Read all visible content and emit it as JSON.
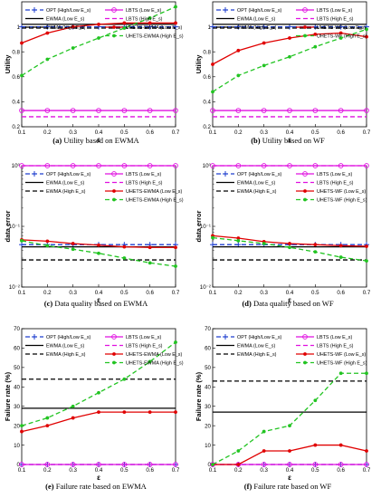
{
  "chart_data": [
    {
      "id": "a",
      "type": "line",
      "caption_tag": "(a)",
      "caption_text": "Utility based on EWMA",
      "xlabel": "ε",
      "ylabel": "Utility",
      "x": [
        0.1,
        0.2,
        0.3,
        0.4,
        0.5,
        0.6,
        0.7
      ],
      "xlim": [
        0.1,
        0.7
      ],
      "ylim": [
        0.2,
        1.2
      ],
      "ticks_x": [
        "0.1",
        "0.2",
        "0.3",
        "0.4",
        "0.5",
        "0.6",
        "0.7"
      ],
      "yscale": "linear",
      "yticks": [
        0.2,
        0.4,
        0.6,
        0.8,
        1.0
      ],
      "ytick_labels": [
        "0.2",
        "0.4",
        "0.6",
        "0.8",
        "1"
      ],
      "legend_position": "top",
      "series": [
        {
          "name": "OPT (High/Low E_s)",
          "color": "#1f3fcf",
          "dash": "dashed",
          "marker": "plus",
          "values": [
            1.0,
            1.0,
            1.0,
            1.0,
            1.0,
            1.0,
            1.0
          ]
        },
        {
          "name": "LBTS (Low E_s)",
          "color": "#e010e0",
          "dash": "solid",
          "marker": "circle",
          "values": [
            0.33,
            0.33,
            0.33,
            0.33,
            0.33,
            0.33,
            0.33
          ]
        },
        {
          "name": "EWMA (Low E_s)",
          "color": "#000000",
          "dash": "solid",
          "marker": "none",
          "values": [
            1.02,
            1.02,
            1.02,
            1.02,
            1.02,
            1.02,
            1.02
          ]
        },
        {
          "name": "LBTS (High E_s)",
          "color": "#e010e0",
          "dash": "dashed",
          "marker": "none",
          "values": [
            0.28,
            0.28,
            0.28,
            0.28,
            0.28,
            0.28,
            0.28
          ]
        },
        {
          "name": "EWMA (High E_s)",
          "color": "#000000",
          "dash": "dashed",
          "marker": "none",
          "values": [
            0.99,
            0.99,
            0.99,
            0.99,
            0.99,
            0.99,
            0.99
          ]
        },
        {
          "name": "UHETS-EWMA (Low E_s)",
          "color": "#e00000",
          "dash": "solid",
          "marker": "dot",
          "values": [
            0.87,
            0.95,
            1.0,
            1.02,
            1.03,
            1.03,
            1.03
          ]
        },
        {
          "name": "UHETS-EWMA (High E_s)",
          "color": "#22c422",
          "dash": "dashed",
          "marker": "dot",
          "values": [
            0.61,
            0.74,
            0.83,
            0.91,
            0.99,
            1.07,
            1.16
          ]
        }
      ]
    },
    {
      "id": "b",
      "type": "line",
      "caption_tag": "(b)",
      "caption_text": "Utility based on WF",
      "xlabel": "ε",
      "ylabel": "Utility",
      "x": [
        0.1,
        0.2,
        0.3,
        0.4,
        0.5,
        0.6,
        0.7
      ],
      "xlim": [
        0.1,
        0.7
      ],
      "ylim": [
        0.2,
        1.2
      ],
      "ticks_x": [
        "0.1",
        "0.2",
        "0.3",
        "0.4",
        "0.5",
        "0.6",
        "0.7"
      ],
      "yscale": "linear",
      "yticks": [
        0.2,
        0.4,
        0.6,
        0.8,
        1.0
      ],
      "ytick_labels": [
        "0.2",
        "0.4",
        "0.6",
        "0.8",
        "1"
      ],
      "legend_position": "top",
      "series": [
        {
          "name": "OPT (High/Low E_s)",
          "color": "#1f3fcf",
          "dash": "dashed",
          "marker": "plus",
          "values": [
            1.0,
            1.0,
            1.0,
            1.0,
            1.0,
            1.0,
            1.0
          ]
        },
        {
          "name": "LBTS (Low E_s)",
          "color": "#e010e0",
          "dash": "solid",
          "marker": "circle",
          "values": [
            0.33,
            0.33,
            0.33,
            0.33,
            0.33,
            0.33,
            0.33
          ]
        },
        {
          "name": "EWMA (Low E_s)",
          "color": "#000000",
          "dash": "solid",
          "marker": "none",
          "values": [
            1.02,
            1.02,
            1.02,
            1.02,
            1.02,
            1.02,
            1.02
          ]
        },
        {
          "name": "LBTS (High E_s)",
          "color": "#e010e0",
          "dash": "dashed",
          "marker": "none",
          "values": [
            0.28,
            0.28,
            0.28,
            0.28,
            0.28,
            0.28,
            0.28
          ]
        },
        {
          "name": "EWMA (High E_s)",
          "color": "#000000",
          "dash": "dashed",
          "marker": "none",
          "values": [
            0.99,
            0.99,
            0.99,
            0.99,
            0.99,
            0.99,
            0.99
          ]
        },
        {
          "name": "UHETS-WF (Low E_s)",
          "color": "#e00000",
          "dash": "solid",
          "marker": "dot",
          "values": [
            0.7,
            0.81,
            0.87,
            0.91,
            0.94,
            0.95,
            0.92
          ]
        },
        {
          "name": "UHETS-WF (High E_s)",
          "color": "#22c422",
          "dash": "dashed",
          "marker": "dot",
          "values": [
            0.48,
            0.61,
            0.69,
            0.76,
            0.84,
            0.91,
            0.98
          ]
        }
      ]
    },
    {
      "id": "c",
      "type": "line",
      "caption_tag": "(c)",
      "caption_text": "Data quality based on EWMA",
      "xlabel": "ε",
      "ylabel": "data error",
      "x": [
        0.1,
        0.2,
        0.3,
        0.4,
        0.5,
        0.6,
        0.7
      ],
      "xlim": [
        0.1,
        0.7
      ],
      "ylim": [
        0.01,
        1
      ],
      "ticks_x": [
        "0.1",
        "0.2",
        "0.3",
        "0.4",
        "0.5",
        "0.6",
        "0.7"
      ],
      "yscale": "log",
      "yticks": [
        0.01,
        0.1,
        1
      ],
      "ytick_labels": [
        "10⁻²",
        "10⁻¹",
        "10⁰"
      ],
      "legend_position": "top",
      "series": [
        {
          "name": "OPT (High/Low E_s)",
          "color": "#1f3fcf",
          "dash": "dashed",
          "marker": "plus",
          "values": [
            0.05,
            0.05,
            0.05,
            0.05,
            0.05,
            0.05,
            0.05
          ]
        },
        {
          "name": "LBTS (Low E_s)",
          "color": "#e010e0",
          "dash": "solid",
          "marker": "circle",
          "values": [
            1,
            1,
            1,
            1,
            1,
            1,
            1
          ]
        },
        {
          "name": "EWMA (Low E_s)",
          "color": "#000000",
          "dash": "solid",
          "marker": "none",
          "values": [
            0.046,
            0.046,
            0.046,
            0.046,
            0.046,
            0.046,
            0.046
          ]
        },
        {
          "name": "LBTS (High E_s)",
          "color": "#e010e0",
          "dash": "dashed",
          "marker": "none",
          "values": [
            1,
            1,
            1,
            1,
            1,
            1,
            1
          ]
        },
        {
          "name": "EWMA (High E_s)",
          "color": "#000000",
          "dash": "dashed",
          "marker": "none",
          "values": [
            0.028,
            0.028,
            0.028,
            0.028,
            0.028,
            0.028,
            0.028
          ]
        },
        {
          "name": "UHETS-EWMA (Low E_s)",
          "color": "#e00000",
          "dash": "solid",
          "marker": "dot",
          "values": [
            0.06,
            0.057,
            0.052,
            0.049,
            0.046,
            0.045,
            0.045
          ]
        },
        {
          "name": "UHETS-EWMA (High E_s)",
          "color": "#22c422",
          "dash": "dashed",
          "marker": "dot",
          "values": [
            0.058,
            0.048,
            0.042,
            0.036,
            0.03,
            0.025,
            0.022
          ]
        }
      ]
    },
    {
      "id": "d",
      "type": "line",
      "caption_tag": "(d)",
      "caption_text": "Data quality based on WF",
      "xlabel": "ε",
      "ylabel": "data error",
      "x": [
        0.1,
        0.2,
        0.3,
        0.4,
        0.5,
        0.6,
        0.7
      ],
      "xlim": [
        0.1,
        0.7
      ],
      "ylim": [
        0.01,
        1
      ],
      "ticks_x": [
        "0.1",
        "0.2",
        "0.3",
        "0.4",
        "0.5",
        "0.6",
        "0.7"
      ],
      "yscale": "log",
      "yticks": [
        0.01,
        0.1,
        1
      ],
      "ytick_labels": [
        "10⁻²",
        "10⁻¹",
        "10⁰"
      ],
      "legend_position": "top",
      "series": [
        {
          "name": "OPT (High/Low E_s)",
          "color": "#1f3fcf",
          "dash": "dashed",
          "marker": "plus",
          "values": [
            0.05,
            0.05,
            0.05,
            0.05,
            0.05,
            0.05,
            0.05
          ]
        },
        {
          "name": "LBTS (Low E_s)",
          "color": "#e010e0",
          "dash": "solid",
          "marker": "circle",
          "values": [
            1,
            1,
            1,
            1,
            1,
            1,
            1
          ]
        },
        {
          "name": "EWMA (Low E_s)",
          "color": "#000000",
          "dash": "solid",
          "marker": "none",
          "values": [
            0.046,
            0.046,
            0.046,
            0.046,
            0.046,
            0.046,
            0.046
          ]
        },
        {
          "name": "LBTS (High E_s)",
          "color": "#e010e0",
          "dash": "dashed",
          "marker": "none",
          "values": [
            1,
            1,
            1,
            1,
            1,
            1,
            1
          ]
        },
        {
          "name": "EWMA (High E_s)",
          "color": "#000000",
          "dash": "dashed",
          "marker": "none",
          "values": [
            0.028,
            0.028,
            0.028,
            0.028,
            0.028,
            0.028,
            0.028
          ]
        },
        {
          "name": "UHETS-WF (Low E_s)",
          "color": "#e00000",
          "dash": "solid",
          "marker": "dot",
          "values": [
            0.07,
            0.064,
            0.056,
            0.052,
            0.05,
            0.048,
            0.047
          ]
        },
        {
          "name": "UHETS-WF (High E_s)",
          "color": "#22c422",
          "dash": "dashed",
          "marker": "dot",
          "values": [
            0.065,
            0.058,
            0.052,
            0.045,
            0.038,
            0.031,
            0.027
          ]
        }
      ]
    },
    {
      "id": "e",
      "type": "line",
      "caption_tag": "(e)",
      "caption_text": "Failure rate based on EWMA",
      "xlabel": "ε",
      "ylabel": "Failure rate (%)",
      "x": [
        0.1,
        0.2,
        0.3,
        0.4,
        0.5,
        0.6,
        0.7
      ],
      "xlim": [
        0.1,
        0.7
      ],
      "ylim": [
        0,
        70
      ],
      "ticks_x": [
        "0.1",
        "0.2",
        "0.3",
        "0.4",
        "0.5",
        "0.6",
        "0.7"
      ],
      "yscale": "linear",
      "yticks": [
        0,
        10,
        20,
        30,
        40,
        50,
        60,
        70
      ],
      "ytick_labels": [
        "0",
        "10",
        "20",
        "30",
        "40",
        "50",
        "60",
        "70"
      ],
      "legend_position": "top",
      "series": [
        {
          "name": "OPT (High/Low E_s)",
          "color": "#1f3fcf",
          "dash": "dashed",
          "marker": "plus",
          "values": [
            0,
            0,
            0,
            0,
            0,
            0,
            0
          ]
        },
        {
          "name": "LBTS (Low E_s)",
          "color": "#e010e0",
          "dash": "solid",
          "marker": "circle",
          "values": [
            0,
            0,
            0,
            0,
            0,
            0,
            0
          ]
        },
        {
          "name": "EWMA (Low E_s)",
          "color": "#000000",
          "dash": "solid",
          "marker": "none",
          "values": [
            29,
            29,
            29,
            29,
            29,
            29,
            29
          ]
        },
        {
          "name": "LBTS (High E_s)",
          "color": "#e010e0",
          "dash": "dashed",
          "marker": "none",
          "values": [
            0,
            0,
            0,
            0,
            0,
            0,
            0
          ]
        },
        {
          "name": "EWMA (High E_s)",
          "color": "#000000",
          "dash": "dashed",
          "marker": "none",
          "values": [
            44,
            44,
            44,
            44,
            44,
            44,
            44
          ]
        },
        {
          "name": "UHETS-EWMA (Low E_s)",
          "color": "#e00000",
          "dash": "solid",
          "marker": "dot",
          "values": [
            17,
            20,
            24,
            27,
            27,
            27,
            27
          ]
        },
        {
          "name": "UHETS-EWMA (High E_s)",
          "color": "#22c422",
          "dash": "dashed",
          "marker": "dot",
          "values": [
            20,
            24,
            30,
            37,
            44,
            53,
            63
          ]
        }
      ]
    },
    {
      "id": "f",
      "type": "line",
      "caption_tag": "(f)",
      "caption_text": "Failure rate based on WF",
      "xlabel": "ε",
      "ylabel": "Failure rate (%)",
      "x": [
        0.1,
        0.2,
        0.3,
        0.4,
        0.5,
        0.6,
        0.7
      ],
      "xlim": [
        0.1,
        0.7
      ],
      "ylim": [
        0,
        70
      ],
      "ticks_x": [
        "0.1",
        "0.2",
        "0.3",
        "0.4",
        "0.5",
        "0.6",
        "0.7"
      ],
      "yscale": "linear",
      "yticks": [
        0,
        10,
        20,
        30,
        40,
        50,
        60,
        70
      ],
      "ytick_labels": [
        "0",
        "10",
        "20",
        "30",
        "40",
        "50",
        "60",
        "70"
      ],
      "legend_position": "top",
      "series": [
        {
          "name": "OPT (High/Low E_s)",
          "color": "#1f3fcf",
          "dash": "dashed",
          "marker": "plus",
          "values": [
            0,
            0,
            0,
            0,
            0,
            0,
            0
          ]
        },
        {
          "name": "LBTS (Low E_s)",
          "color": "#e010e0",
          "dash": "solid",
          "marker": "circle",
          "values": [
            0,
            0,
            0,
            0,
            0,
            0,
            0
          ]
        },
        {
          "name": "EWMA (Low E_s)",
          "color": "#000000",
          "dash": "solid",
          "marker": "none",
          "values": [
            27,
            27,
            27,
            27,
            27,
            27,
            27
          ]
        },
        {
          "name": "LBTS (High E_s)",
          "color": "#e010e0",
          "dash": "dashed",
          "marker": "none",
          "values": [
            0,
            0,
            0,
            0,
            0,
            0,
            0
          ]
        },
        {
          "name": "EWMA (High E_s)",
          "color": "#000000",
          "dash": "dashed",
          "marker": "none",
          "values": [
            43,
            43,
            43,
            43,
            43,
            43,
            43
          ]
        },
        {
          "name": "UHETS-WF (Low E_s)",
          "color": "#e00000",
          "dash": "solid",
          "marker": "dot",
          "values": [
            0,
            0,
            7,
            7,
            10,
            10,
            7
          ]
        },
        {
          "name": "UHETS-WF (High E_s)",
          "color": "#22c422",
          "dash": "dashed",
          "marker": "dot",
          "values": [
            0,
            7,
            17,
            20,
            33,
            47,
            47
          ]
        }
      ]
    }
  ]
}
